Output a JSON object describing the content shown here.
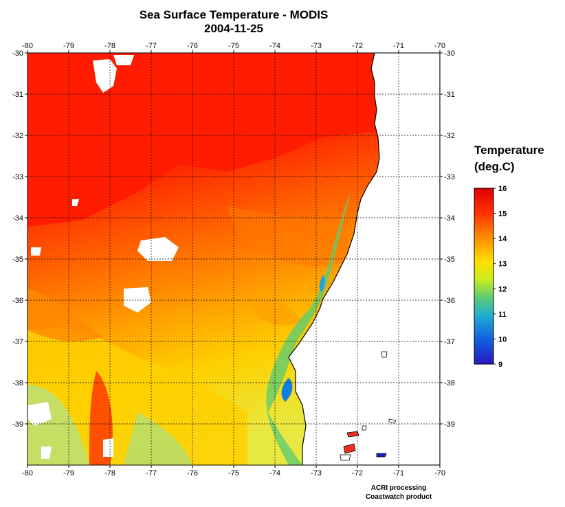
{
  "title": "Sea Surface Temperature - MODIS",
  "date": "2004-11-25",
  "legend": {
    "title_line1": "Temperature",
    "title_line2": "(deg.C)",
    "min": 9,
    "max": 16,
    "ticks": [
      "16",
      "15",
      "14",
      "13",
      "12",
      "11",
      "10",
      "9"
    ],
    "colors": [
      "#e80000",
      "#ff2a00",
      "#ff6a00",
      "#ffa800",
      "#ffe000",
      "#d8f020",
      "#70d860",
      "#20b0d0",
      "#1060e0",
      "#2020c0"
    ]
  },
  "credit": {
    "line1": "ACRI processing",
    "line2": "Coastwatch product"
  },
  "map": {
    "lon_range": [
      -80,
      -70
    ],
    "lat_range": [
      -40,
      -30
    ],
    "lon_ticks": [
      "-80",
      "-79",
      "-78",
      "-77",
      "-76",
      "-75",
      "-74",
      "-73",
      "-72",
      "-71",
      "-70"
    ],
    "lat_ticks": [
      "-30",
      "-31",
      "-32",
      "-33",
      "-34",
      "-35",
      "-36",
      "-37",
      "-38",
      "-39"
    ],
    "coastline_color": "#000000",
    "land_color": "#ffffff",
    "grid": "dotted"
  }
}
